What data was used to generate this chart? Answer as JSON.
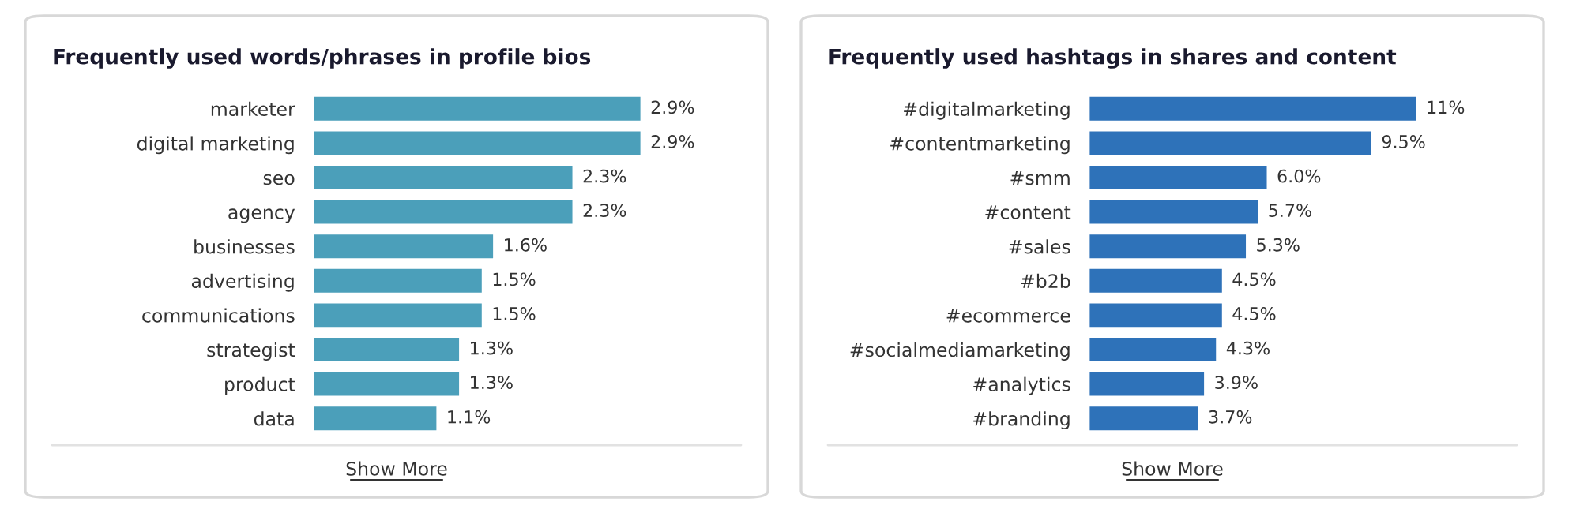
{
  "chart_data": [
    {
      "type": "bar",
      "orientation": "horizontal",
      "title": "Frequently used words/phrases in profile bios",
      "categories": [
        "marketer",
        "digital marketing",
        "seo",
        "agency",
        "businesses",
        "advertising",
        "communications",
        "strategist",
        "product",
        "data"
      ],
      "values": [
        2.9,
        2.9,
        2.3,
        2.3,
        1.6,
        1.5,
        1.5,
        1.3,
        1.3,
        1.1
      ],
      "value_labels": [
        "2.9%",
        "2.9%",
        "2.3%",
        "2.3%",
        "1.6%",
        "1.5%",
        "1.5%",
        "1.3%",
        "1.3%",
        "1.1%"
      ],
      "color": "#4b9fba",
      "tick_labels": "y",
      "grid": false,
      "legend": false,
      "annotations": [
        "Show More"
      ]
    },
    {
      "type": "bar",
      "orientation": "horizontal",
      "title": "Frequently used hashtags in shares and content",
      "categories": [
        "#digitalmarketing",
        "#contentmarketing",
        "#smm",
        "#content",
        "#sales",
        "#b2b",
        "#ecommerce",
        "#socialmediamarketing",
        "#analytics",
        "#branding"
      ],
      "values": [
        11,
        9.5,
        6.0,
        5.7,
        5.3,
        4.5,
        4.5,
        4.3,
        3.9,
        3.7
      ],
      "value_labels": [
        "11%",
        "9.5%",
        "6.0%",
        "5.7%",
        "5.3%",
        "4.5%",
        "4.5%",
        "4.3%",
        "3.9%",
        "3.7%"
      ],
      "color": "#2e72b9",
      "tick_labels": "y",
      "grid": false,
      "legend": false,
      "annotations": [
        "Show More"
      ]
    }
  ]
}
